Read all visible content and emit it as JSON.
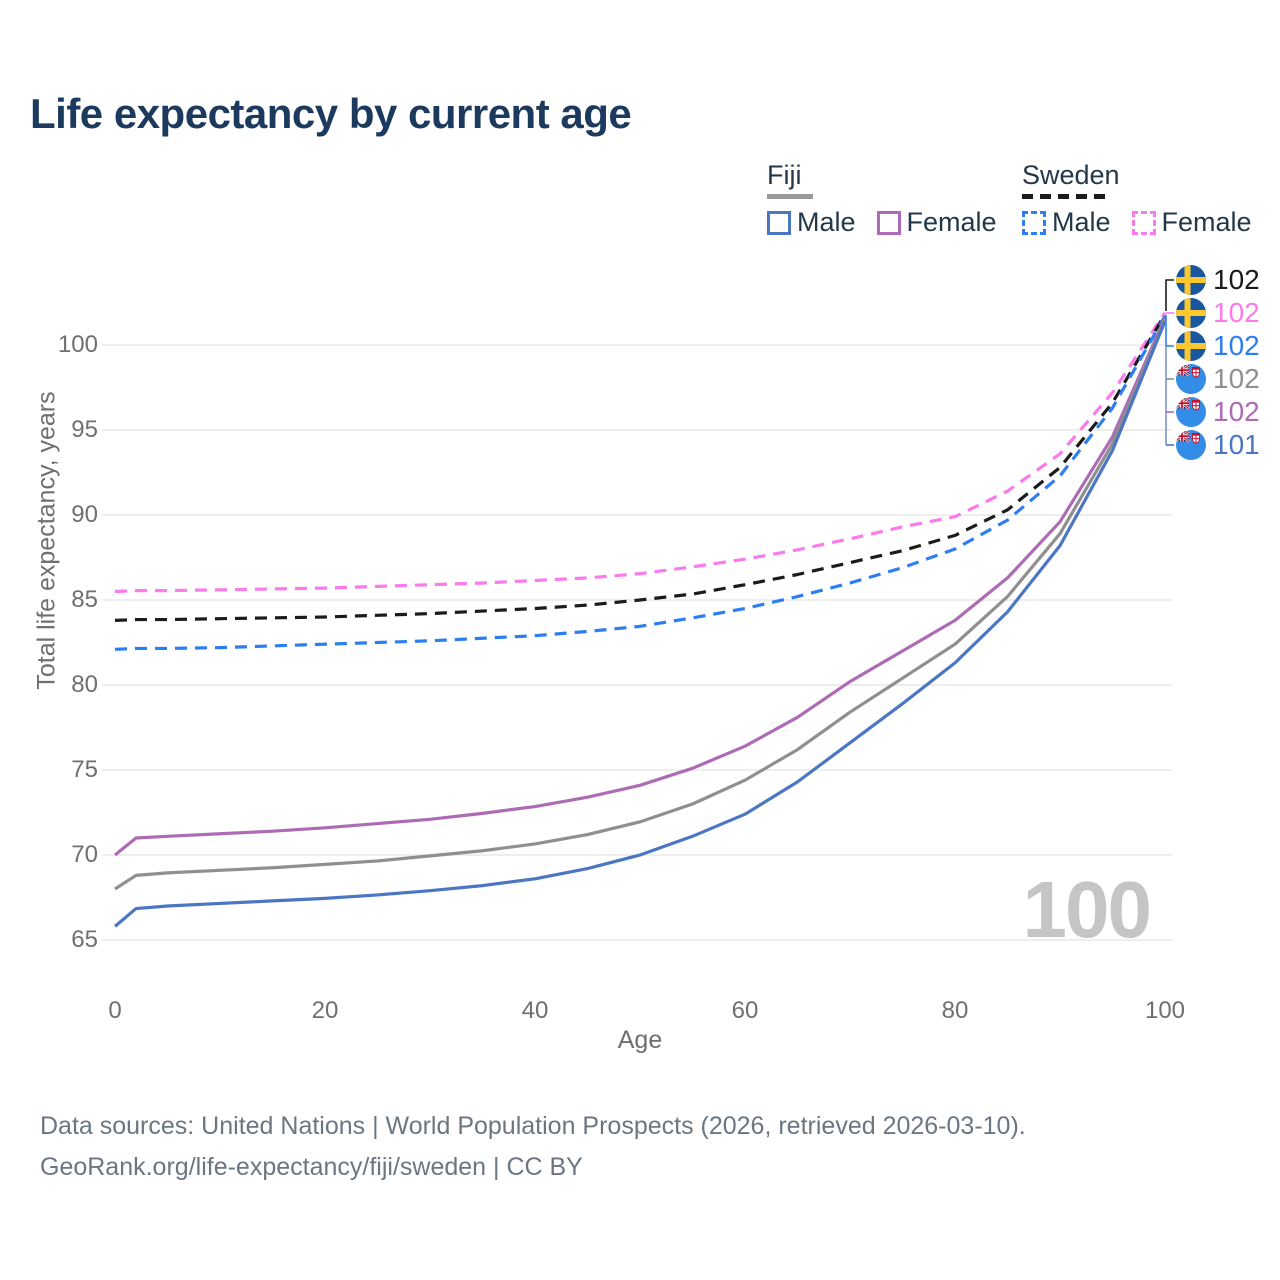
{
  "title": "Life expectancy by current age",
  "legend": {
    "groups": [
      {
        "label": "Fiji",
        "line_style": "solid",
        "swatch_color": "#9a9a9a",
        "items": [
          {
            "label": "Male",
            "color": "#4a76c4"
          },
          {
            "label": "Female",
            "color": "#ae6bb5"
          }
        ]
      },
      {
        "label": "Sweden",
        "line_style": "dashed",
        "swatch_color": "#1b1b1b",
        "items": [
          {
            "label": "Male",
            "color": "#2d7ef0"
          },
          {
            "label": "Female",
            "color": "#fb7aec"
          }
        ]
      }
    ]
  },
  "end_labels": [
    {
      "country": "Sweden",
      "flag": "sweden",
      "value": "102",
      "color": "#1b1b1b"
    },
    {
      "country": "Sweden",
      "flag": "sweden",
      "value": "102",
      "color": "#fb7aec"
    },
    {
      "country": "Sweden",
      "flag": "sweden",
      "value": "102",
      "color": "#2d7ef0"
    },
    {
      "country": "Fiji",
      "flag": "fiji",
      "value": "102",
      "color": "#8f8f8f"
    },
    {
      "country": "Fiji",
      "flag": "fiji",
      "value": "102",
      "color": "#ae6bb5"
    },
    {
      "country": "Fiji",
      "flag": "fiji",
      "value": "101",
      "color": "#4a76c4"
    }
  ],
  "watermark_age": "100",
  "chart_data": {
    "type": "line",
    "title": "Life expectancy by current age",
    "xlabel": "Age",
    "ylabel": "Total life expectancy, years",
    "xlim": [
      0,
      100
    ],
    "ylim": [
      65,
      103
    ],
    "x_ticks": [
      0,
      20,
      40,
      60,
      80,
      100
    ],
    "y_ticks": [
      65,
      70,
      75,
      80,
      85,
      90,
      95,
      100
    ],
    "grid": "horizontal",
    "legend_position": "top-right",
    "x": [
      0,
      2,
      5,
      10,
      15,
      20,
      25,
      30,
      35,
      40,
      45,
      50,
      55,
      60,
      65,
      70,
      75,
      80,
      85,
      90,
      95,
      100
    ],
    "series": [
      {
        "name": "Sweden Female",
        "country": "Sweden",
        "sex": "Female",
        "color": "#fb7aec",
        "dash": true,
        "values": [
          85.5,
          85.55,
          85.55,
          85.6,
          85.65,
          85.7,
          85.8,
          85.9,
          86.0,
          86.15,
          86.3,
          86.55,
          86.95,
          87.4,
          87.95,
          88.6,
          89.3,
          89.9,
          91.4,
          93.6,
          97.2,
          101.9
        ]
      },
      {
        "name": "Sweden Both sexes",
        "country": "Sweden",
        "sex": "Both",
        "color": "#1b1b1b",
        "dash": true,
        "values": [
          83.8,
          83.85,
          83.85,
          83.9,
          83.95,
          84.0,
          84.1,
          84.2,
          84.35,
          84.5,
          84.7,
          85.0,
          85.35,
          85.9,
          86.5,
          87.2,
          87.9,
          88.8,
          90.3,
          92.8,
          96.6,
          101.8
        ]
      },
      {
        "name": "Sweden Male",
        "country": "Sweden",
        "sex": "Male",
        "color": "#2d7ef0",
        "dash": true,
        "values": [
          82.1,
          82.15,
          82.15,
          82.2,
          82.3,
          82.4,
          82.5,
          82.6,
          82.75,
          82.9,
          83.15,
          83.45,
          83.95,
          84.5,
          85.2,
          86.0,
          86.9,
          88.0,
          89.7,
          92.3,
          96.3,
          101.7
        ]
      },
      {
        "name": "Fiji Female",
        "country": "Fiji",
        "sex": "Female",
        "color": "#ae6bb5",
        "dash": false,
        "values": [
          70.0,
          71.0,
          71.1,
          71.25,
          71.4,
          71.6,
          71.85,
          72.1,
          72.45,
          72.85,
          73.4,
          74.1,
          75.1,
          76.4,
          78.1,
          80.2,
          82.0,
          83.8,
          86.3,
          89.6,
          94.6,
          101.6
        ]
      },
      {
        "name": "Fiji Both sexes",
        "country": "Fiji",
        "sex": "Both",
        "color": "#8f8f8f",
        "dash": false,
        "values": [
          68.0,
          68.8,
          68.95,
          69.1,
          69.25,
          69.45,
          69.65,
          69.95,
          70.25,
          70.65,
          71.2,
          71.95,
          73.0,
          74.4,
          76.2,
          78.4,
          80.4,
          82.4,
          85.2,
          88.9,
          94.2,
          101.5
        ]
      },
      {
        "name": "Fiji Male",
        "country": "Fiji",
        "sex": "Male",
        "color": "#4a76c4",
        "dash": false,
        "values": [
          65.8,
          66.85,
          67.0,
          67.15,
          67.3,
          67.45,
          67.65,
          67.9,
          68.2,
          68.6,
          69.2,
          70.0,
          71.1,
          72.4,
          74.3,
          76.6,
          78.9,
          81.3,
          84.3,
          88.2,
          93.8,
          101.4
        ]
      }
    ]
  },
  "footer": {
    "line1": "Data sources: United Nations | World Population Prospects (2026, retrieved 2026-03-10).",
    "line2": "GeoRank.org/life-expectancy/fiji/sweden | CC BY"
  }
}
